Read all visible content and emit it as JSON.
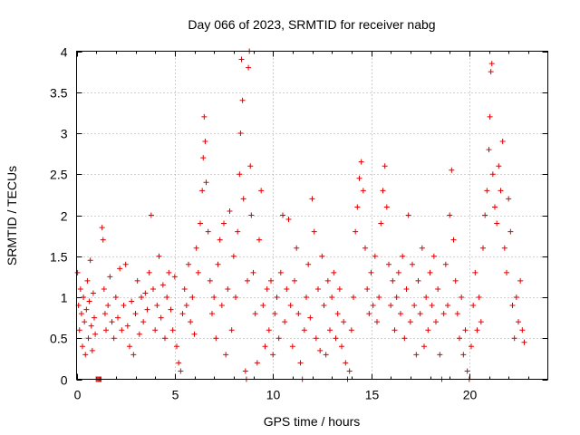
{
  "chart_data": {
    "type": "scatter",
    "title": "Day 066 of 2023, SRMTID for receiver nabg",
    "xlabel": "GPS time / hours",
    "ylabel": "SRMTID / TECUs",
    "xlim": [
      0,
      24
    ],
    "ylim": [
      0,
      4
    ],
    "xticks": [
      0,
      5,
      10,
      15,
      20
    ],
    "yticks": [
      0,
      0.5,
      1,
      1.5,
      2,
      2.5,
      3,
      3.5,
      4
    ],
    "xtick_labels": [
      "0",
      "5",
      "10",
      "15",
      "20"
    ],
    "ytick_labels": [
      "0",
      "0.5",
      "1",
      "1.5",
      "2",
      "2.5",
      "3",
      "3.5",
      "4"
    ],
    "grid": true,
    "marker": "+",
    "color": "#e00000",
    "series": [
      {
        "name": "SRMTID",
        "points": [
          [
            0.05,
            1.3
          ],
          [
            0.1,
            0.9
          ],
          [
            0.15,
            0.6
          ],
          [
            0.2,
            1.1
          ],
          [
            0.25,
            0.8
          ],
          [
            0.3,
            0.4
          ],
          [
            0.35,
            1.0
          ],
          [
            0.4,
            0.7
          ],
          [
            0.45,
            0.3
          ],
          [
            0.5,
            0.85
          ],
          [
            0.55,
            1.2
          ],
          [
            0.6,
            0.5
          ],
          [
            0.65,
            0.95
          ],
          [
            0.7,
            1.45
          ],
          [
            0.75,
            0.65
          ],
          [
            0.8,
            0.35
          ],
          [
            0.85,
            1.05
          ],
          [
            0.9,
            0.75
          ],
          [
            0.95,
            0.55
          ],
          [
            1.0,
            0.0
          ],
          [
            1.05,
            0.0
          ],
          [
            1.1,
            0.0
          ],
          [
            1.15,
            0.0
          ],
          [
            1.2,
            0.0
          ],
          [
            1.25,
            0.0
          ],
          [
            1.3,
            1.85
          ],
          [
            1.35,
            1.7
          ],
          [
            1.4,
            1.1
          ],
          [
            1.45,
            0.8
          ],
          [
            1.5,
            0.6
          ],
          [
            1.6,
            0.9
          ],
          [
            1.7,
            1.25
          ],
          [
            1.8,
            0.7
          ],
          [
            1.9,
            0.5
          ],
          [
            2.0,
            1.0
          ],
          [
            2.1,
            0.75
          ],
          [
            2.2,
            1.35
          ],
          [
            2.3,
            0.6
          ],
          [
            2.4,
            0.9
          ],
          [
            2.5,
            1.4
          ],
          [
            2.6,
            0.65
          ],
          [
            2.7,
            0.4
          ],
          [
            2.8,
            0.95
          ],
          [
            2.9,
            0.3
          ],
          [
            3.0,
            0.8
          ],
          [
            3.1,
            1.2
          ],
          [
            3.2,
            0.55
          ],
          [
            3.3,
            1.0
          ],
          [
            3.4,
            0.7
          ],
          [
            3.5,
            1.05
          ],
          [
            3.6,
            0.85
          ],
          [
            3.7,
            1.3
          ],
          [
            3.8,
            2.0
          ],
          [
            3.9,
            1.1
          ],
          [
            4.0,
            0.6
          ],
          [
            4.1,
            0.9
          ],
          [
            4.2,
            1.5
          ],
          [
            4.3,
            0.75
          ],
          [
            4.4,
            1.15
          ],
          [
            4.5,
            0.5
          ],
          [
            4.6,
            1.0
          ],
          [
            4.7,
            1.3
          ],
          [
            4.8,
            0.85
          ],
          [
            4.9,
            0.6
          ],
          [
            5.0,
            1.25
          ],
          [
            5.1,
            0.4
          ],
          [
            5.2,
            0.2
          ],
          [
            5.3,
            0.1
          ],
          [
            5.4,
            0.8
          ],
          [
            5.5,
            1.1
          ],
          [
            5.6,
            0.9
          ],
          [
            5.7,
            1.4
          ],
          [
            5.8,
            0.7
          ],
          [
            5.9,
            1.0
          ],
          [
            6.0,
            0.55
          ],
          [
            6.1,
            1.6
          ],
          [
            6.2,
            1.3
          ],
          [
            6.3,
            1.9
          ],
          [
            6.4,
            2.3
          ],
          [
            6.45,
            2.7
          ],
          [
            6.5,
            3.2
          ],
          [
            6.55,
            2.9
          ],
          [
            6.6,
            2.4
          ],
          [
            6.7,
            1.8
          ],
          [
            6.8,
            1.2
          ],
          [
            6.9,
            0.8
          ],
          [
            7.0,
            1.0
          ],
          [
            7.1,
            0.5
          ],
          [
            7.2,
            1.4
          ],
          [
            7.3,
            1.7
          ],
          [
            7.4,
            0.9
          ],
          [
            7.5,
            1.9
          ],
          [
            7.6,
            0.3
          ],
          [
            7.7,
            1.1
          ],
          [
            7.8,
            2.05
          ],
          [
            7.9,
            0.6
          ],
          [
            8.0,
            1.5
          ],
          [
            8.1,
            1.0
          ],
          [
            8.2,
            1.8
          ],
          [
            8.3,
            2.5
          ],
          [
            8.35,
            3.0
          ],
          [
            8.4,
            3.9
          ],
          [
            8.45,
            3.4
          ],
          [
            8.5,
            2.2
          ],
          [
            8.6,
            0.1
          ],
          [
            8.65,
            0.0
          ],
          [
            8.7,
            1.2
          ],
          [
            8.75,
            3.8
          ],
          [
            8.8,
            4.0
          ],
          [
            8.85,
            2.6
          ],
          [
            8.9,
            2.0
          ],
          [
            9.0,
            1.3
          ],
          [
            9.1,
            0.8
          ],
          [
            9.2,
            0.2
          ],
          [
            9.3,
            1.7
          ],
          [
            9.4,
            2.3
          ],
          [
            9.5,
            0.9
          ],
          [
            9.6,
            0.4
          ],
          [
            9.7,
            1.1
          ],
          [
            9.8,
            0.6
          ],
          [
            9.9,
            1.2
          ],
          [
            10.0,
            0.3
          ],
          [
            10.1,
            0.8
          ],
          [
            10.2,
            1.0
          ],
          [
            10.3,
            0.5
          ],
          [
            10.4,
            1.3
          ],
          [
            10.5,
            2.0
          ],
          [
            10.6,
            0.7
          ],
          [
            10.7,
            1.1
          ],
          [
            10.8,
            1.95
          ],
          [
            10.9,
            0.9
          ],
          [
            11.0,
            0.4
          ],
          [
            11.1,
            1.2
          ],
          [
            11.2,
            1.6
          ],
          [
            11.3,
            0.8
          ],
          [
            11.4,
            0.2
          ],
          [
            11.5,
            0.0
          ],
          [
            11.6,
            0.6
          ],
          [
            11.7,
            1.0
          ],
          [
            11.8,
            1.4
          ],
          [
            11.9,
            0.75
          ],
          [
            12.0,
            2.2
          ],
          [
            12.1,
            1.8
          ],
          [
            12.2,
            0.5
          ],
          [
            12.3,
            1.1
          ],
          [
            12.4,
            0.35
          ],
          [
            12.5,
            1.5
          ],
          [
            12.6,
            0.9
          ],
          [
            12.7,
            0.3
          ],
          [
            12.8,
            1.2
          ],
          [
            12.9,
            0.6
          ],
          [
            13.0,
            1.0
          ],
          [
            13.1,
            1.3
          ],
          [
            13.2,
            0.5
          ],
          [
            13.3,
            0.8
          ],
          [
            13.4,
            1.1
          ],
          [
            13.5,
            0.4
          ],
          [
            13.6,
            0.7
          ],
          [
            13.7,
            0.2
          ],
          [
            13.8,
            0.0
          ],
          [
            13.9,
            0.1
          ],
          [
            14.0,
            0.6
          ],
          [
            14.1,
            1.0
          ],
          [
            14.2,
            1.8
          ],
          [
            14.3,
            2.1
          ],
          [
            14.4,
            2.45
          ],
          [
            14.5,
            2.65
          ],
          [
            14.6,
            2.3
          ],
          [
            14.7,
            1.6
          ],
          [
            14.8,
            1.1
          ],
          [
            14.9,
            0.8
          ],
          [
            15.0,
            1.3
          ],
          [
            15.1,
            0.9
          ],
          [
            15.2,
            1.5
          ],
          [
            15.3,
            0.7
          ],
          [
            15.4,
            1.0
          ],
          [
            15.5,
            1.9
          ],
          [
            15.6,
            2.3
          ],
          [
            15.7,
            2.6
          ],
          [
            15.8,
            2.1
          ],
          [
            15.9,
            1.4
          ],
          [
            16.0,
            0.9
          ],
          [
            16.1,
            1.2
          ],
          [
            16.2,
            0.6
          ],
          [
            16.3,
            1.0
          ],
          [
            16.4,
            1.3
          ],
          [
            16.5,
            0.8
          ],
          [
            16.6,
            1.5
          ],
          [
            16.7,
            0.5
          ],
          [
            16.8,
            1.1
          ],
          [
            16.9,
            2.0
          ],
          [
            17.0,
            0.7
          ],
          [
            17.1,
            1.4
          ],
          [
            17.2,
            0.9
          ],
          [
            17.3,
            0.3
          ],
          [
            17.4,
            1.2
          ],
          [
            17.5,
            0.8
          ],
          [
            17.6,
            1.6
          ],
          [
            17.7,
            0.4
          ],
          [
            17.8,
            1.0
          ],
          [
            17.9,
            0.6
          ],
          [
            18.0,
            1.3
          ],
          [
            18.1,
            0.9
          ],
          [
            18.2,
            1.5
          ],
          [
            18.3,
            0.7
          ],
          [
            18.4,
            1.1
          ],
          [
            18.5,
            0.3
          ],
          [
            18.6,
            0.0
          ],
          [
            18.7,
            0.8
          ],
          [
            18.8,
            1.4
          ],
          [
            18.9,
            0.9
          ],
          [
            19.0,
            2.0
          ],
          [
            19.1,
            2.55
          ],
          [
            19.2,
            1.7
          ],
          [
            19.3,
            1.2
          ],
          [
            19.4,
            0.8
          ],
          [
            19.5,
            0.5
          ],
          [
            19.6,
            1.0
          ],
          [
            19.7,
            0.3
          ],
          [
            19.8,
            0.6
          ],
          [
            19.9,
            0.1
          ],
          [
            20.0,
            0.0
          ],
          [
            20.1,
            0.4
          ],
          [
            20.2,
            0.9
          ],
          [
            20.3,
            1.3
          ],
          [
            20.4,
            0.6
          ],
          [
            20.5,
            1.0
          ],
          [
            20.6,
            0.7
          ],
          [
            20.7,
            1.6
          ],
          [
            20.8,
            2.0
          ],
          [
            20.9,
            2.3
          ],
          [
            21.0,
            2.8
          ],
          [
            21.05,
            3.2
          ],
          [
            21.1,
            3.75
          ],
          [
            21.15,
            3.85
          ],
          [
            21.2,
            2.5
          ],
          [
            21.3,
            2.1
          ],
          [
            21.4,
            1.9
          ],
          [
            21.5,
            2.6
          ],
          [
            21.6,
            2.3
          ],
          [
            21.7,
            2.9
          ],
          [
            21.8,
            1.6
          ],
          [
            21.9,
            1.3
          ],
          [
            22.0,
            2.2
          ],
          [
            22.1,
            1.8
          ],
          [
            22.2,
            0.9
          ],
          [
            22.3,
            0.5
          ],
          [
            22.4,
            1.0
          ],
          [
            22.5,
            0.7
          ],
          [
            22.6,
            1.2
          ],
          [
            22.7,
            0.6
          ],
          [
            22.8,
            0.45
          ]
        ]
      }
    ]
  }
}
